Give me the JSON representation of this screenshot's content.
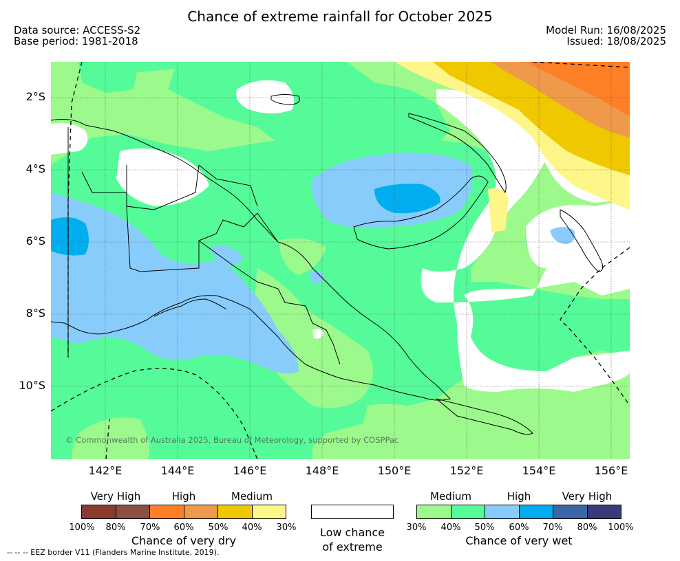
{
  "title": "Chance of extreme rainfall for October 2025",
  "meta_left": [
    "Data source: ACCESS-S2",
    "Base period: 1981-2018"
  ],
  "meta_right": [
    "Model Run: 16/08/2025",
    "Issued: 18/08/2025"
  ],
  "map": {
    "lat_labels": [
      "2°S",
      "4°S",
      "6°S",
      "8°S",
      "10°S"
    ],
    "lon_labels": [
      "142°E",
      "144°E",
      "146°E",
      "148°E",
      "150°E",
      "152°E",
      "154°E",
      "156°E"
    ],
    "copyright": "© Commonwealth of Australia 2025, Bureau of Meteorology, supported by COSPPac"
  },
  "legend": {
    "dry": {
      "headers": [
        "Very High",
        "High",
        "Medium"
      ],
      "colors": [
        "#8b3a30",
        "#8b5040",
        "#ff7f27",
        "#ee9a4a",
        "#f0c800",
        "#fff68a"
      ],
      "ticks": [
        "100%",
        "80%",
        "70%",
        "60%",
        "50%",
        "40%",
        "30%"
      ],
      "caption": "Chance of very dry"
    },
    "neutral": {
      "caption_line1": "Low chance",
      "caption_line2": "of extreme",
      "color": "#ffffff"
    },
    "wet": {
      "headers": [
        "Medium",
        "High",
        "Very High"
      ],
      "colors": [
        "#9cfa8c",
        "#55fb98",
        "#88ccfc",
        "#00aeef",
        "#3a66a8",
        "#3a3a7a"
      ],
      "ticks": [
        "30%",
        "40%",
        "50%",
        "60%",
        "70%",
        "80%",
        "100%"
      ],
      "caption": "Chance of very wet"
    }
  },
  "footnote": "--  --  -- EEZ border V11 (Flanders Marine Institute, 2019)."
}
